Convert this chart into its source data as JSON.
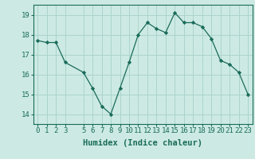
{
  "x": [
    0,
    1,
    2,
    3,
    5,
    6,
    7,
    8,
    9,
    10,
    11,
    12,
    13,
    14,
    15,
    16,
    17,
    18,
    19,
    20,
    21,
    22,
    23
  ],
  "y": [
    17.7,
    17.6,
    17.6,
    16.6,
    16.1,
    15.3,
    14.4,
    14.0,
    15.3,
    16.6,
    18.0,
    18.6,
    18.3,
    18.1,
    19.1,
    18.6,
    18.6,
    18.4,
    17.8,
    16.7,
    16.5,
    16.1,
    15.0
  ],
  "line_color": "#1a6b5a",
  "marker": "D",
  "marker_size": 2.2,
  "bg_color": "#cceae3",
  "grid_color": "#aad4cc",
  "xlabel": "Humidex (Indice chaleur)",
  "ylim": [
    13.5,
    19.5
  ],
  "xlim": [
    -0.5,
    23.5
  ],
  "yticks": [
    14,
    15,
    16,
    17,
    18,
    19
  ],
  "xticks": [
    0,
    1,
    2,
    3,
    5,
    6,
    7,
    8,
    9,
    10,
    11,
    12,
    13,
    14,
    15,
    16,
    17,
    18,
    19,
    20,
    21,
    22,
    23
  ],
  "tick_label_size": 6.5,
  "xlabel_size": 7.5,
  "linewidth": 0.9
}
